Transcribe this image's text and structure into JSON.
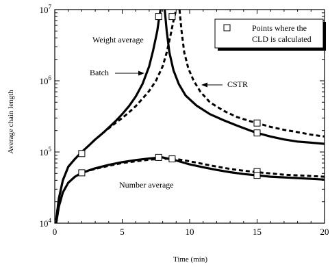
{
  "chart_data": {
    "type": "line",
    "xlabel": "Time (min)",
    "ylabel": "Average chain length",
    "xlim": [
      0,
      20
    ],
    "ylim": [
      10000,
      10000000
    ],
    "yscale": "log",
    "x_ticks": [
      0,
      5,
      10,
      15,
      20
    ],
    "x_tick_labels": [
      "0",
      "5",
      "10",
      "15",
      "20"
    ],
    "y_ticks": [
      10000,
      100000,
      1000000,
      10000000
    ],
    "y_tick_labels": [
      {
        "base": "10",
        "exp": "4"
      },
      {
        "base": "10",
        "exp": "5"
      },
      {
        "base": "10",
        "exp": "6"
      },
      {
        "base": "10",
        "exp": "7"
      }
    ],
    "grid": false,
    "legend": {
      "position": "top-right",
      "text_line1": "Points where the",
      "text_line2": "CLD is calculated"
    },
    "annotations": {
      "weight_average": "Weight average",
      "number_average": "Number average",
      "batch": "Batch",
      "cstr": "CSTR"
    },
    "series": [
      {
        "style": "solid",
        "x": [
          0.1,
          0.3,
          0.6,
          1.0,
          1.5,
          2.0,
          2.5,
          3.0,
          3.5,
          4.0,
          4.5,
          5.0,
          5.5,
          6.0,
          6.5,
          7.0,
          7.3,
          7.6,
          7.75,
          7.85
        ],
        "y": [
          11000,
          22000,
          40000,
          62000,
          80000,
          100000,
          122000,
          150000,
          180000,
          220000,
          270000,
          340000,
          440000,
          600000,
          900000,
          1600000,
          2700000,
          5000000,
          8000000,
          10000000
        ]
      },
      {
        "style": "solid",
        "x": [
          8.15,
          8.3,
          8.5,
          8.8,
          9.2,
          9.7,
          10.5,
          11.5,
          12.5,
          13.5,
          14.5,
          15.0,
          16.0,
          17.0,
          18.0,
          19.0,
          20.0
        ],
        "y": [
          10000000,
          5000000,
          2500000,
          1400000,
          900000,
          620000,
          450000,
          340000,
          280000,
          235000,
          200000,
          185000,
          165000,
          150000,
          140000,
          135000,
          130000
        ]
      },
      {
        "style": "dashed",
        "x": [
          0.1,
          0.3,
          0.6,
          1.0,
          1.5,
          2.0,
          2.5,
          3.0,
          3.5,
          4.0,
          4.5,
          5.0,
          5.5,
          6.0,
          6.5,
          7.0,
          7.5,
          8.0,
          8.3,
          8.6,
          8.8,
          9.0
        ],
        "y": [
          11000,
          22000,
          40000,
          62000,
          80000,
          100000,
          122000,
          150000,
          180000,
          215000,
          255000,
          300000,
          360000,
          440000,
          560000,
          720000,
          1000000,
          1600000,
          2500000,
          4500000,
          7000000,
          10000000
        ]
      },
      {
        "style": "dashed",
        "x": [
          9.25,
          9.4,
          9.6,
          9.9,
          10.3,
          10.8,
          11.5,
          12.5,
          13.5,
          14.5,
          15.0,
          16.0,
          17.0,
          18.0,
          19.0,
          20.0
        ],
        "y": [
          10000000,
          5000000,
          2500000,
          1500000,
          1000000,
          700000,
          500000,
          380000,
          310000,
          270000,
          255000,
          225000,
          205000,
          190000,
          175000,
          165000
        ]
      },
      {
        "style": "solid",
        "x": [
          0.1,
          0.3,
          0.6,
          1.0,
          1.5,
          2.0,
          3.0,
          4.0,
          5.0,
          6.0,
          7.0,
          8.0,
          9.0,
          10.0,
          11.0,
          12.0,
          13.0,
          14.0,
          15.0,
          16.0,
          17.0,
          18.0,
          19.0,
          20.0
        ],
        "y": [
          10000,
          17000,
          27000,
          37000,
          45000,
          51000,
          59000,
          66000,
          72000,
          77000,
          81000,
          84000,
          76000,
          67000,
          61000,
          56000,
          52000,
          49000,
          47000,
          45000,
          44000,
          43000,
          42000,
          41000
        ]
      },
      {
        "style": "dashed",
        "x": [
          0.1,
          0.3,
          0.6,
          1.0,
          1.5,
          2.0,
          3.0,
          4.0,
          5.0,
          6.0,
          7.0,
          8.0,
          8.7,
          9.5,
          10.5,
          11.5,
          12.5,
          13.5,
          15.0,
          16.0,
          17.0,
          18.0,
          19.0,
          20.0
        ],
        "y": [
          10000,
          17000,
          27000,
          37000,
          45000,
          51000,
          58000,
          64000,
          70000,
          74000,
          78000,
          80000,
          81000,
          77000,
          71000,
          65000,
          60000,
          56000,
          52000,
          50000,
          48000,
          47000,
          46000,
          45000
        ]
      }
    ],
    "markers": {
      "x": [
        2.0,
        2.0,
        7.7,
        8.7,
        7.7,
        8.7,
        15.0,
        15.0,
        15.0,
        15.0
      ],
      "y": [
        95000,
        51000,
        8000000,
        8000000,
        84000,
        80000,
        255000,
        185000,
        53000,
        47000
      ]
    }
  }
}
